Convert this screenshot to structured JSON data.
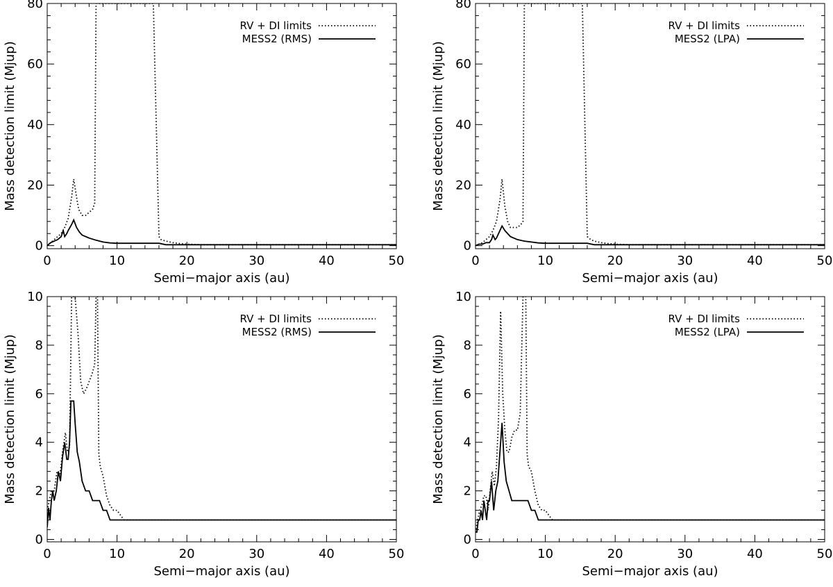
{
  "chart_data": [
    {
      "type": "line",
      "panel": "top-left",
      "xlabel": "Semi−major axis (au)",
      "ylabel": "Mass detection limit (Mjup)",
      "xlim": [
        0,
        50
      ],
      "ylim": [
        -1,
        80
      ],
      "xticks": [
        0,
        10,
        20,
        30,
        40,
        50
      ],
      "yticks": [
        0,
        20,
        40,
        60,
        80
      ],
      "legend_position": "top-right",
      "series": [
        {
          "name": "RV + DI limits",
          "style": "dotted",
          "x": [
            0,
            0.5,
            1,
            1.5,
            2,
            2.5,
            3,
            3.5,
            3.8,
            4.2,
            4.5,
            5,
            5.5,
            6,
            6.5,
            6.8,
            7,
            7.2,
            10,
            15,
            15.2,
            16,
            16.3,
            17,
            18,
            19,
            20,
            22,
            50
          ],
          "y": [
            0,
            1,
            2,
            3,
            4,
            6,
            9,
            16,
            22,
            16,
            12,
            10,
            10,
            11,
            12,
            14,
            80,
            80,
            80,
            80,
            80,
            3,
            2,
            1.5,
            1,
            0.7,
            0.5,
            0.3,
            0.3
          ]
        },
        {
          "name": "MESS2 (RMS)",
          "style": "solid",
          "x": [
            0,
            0.5,
            1,
            1.5,
            2,
            2.3,
            2.5,
            2.8,
            3,
            3.5,
            3.8,
            4.2,
            4.6,
            5,
            6,
            7,
            8,
            9,
            10,
            15,
            16,
            17,
            50
          ],
          "y": [
            0,
            1,
            1.5,
            2,
            3,
            5,
            3,
            4,
            5,
            7,
            8.5,
            6,
            4.5,
            3.5,
            2.5,
            1.8,
            1.2,
            0.9,
            0.8,
            0.8,
            0.8,
            0.3,
            0.3
          ]
        }
      ]
    },
    {
      "type": "line",
      "panel": "top-right",
      "xlabel": "Semi−major axis (au)",
      "ylabel": "Mass detection limit (Mjup)",
      "xlim": [
        0,
        50
      ],
      "ylim": [
        -1,
        80
      ],
      "xticks": [
        0,
        10,
        20,
        30,
        40,
        50
      ],
      "yticks": [
        0,
        20,
        40,
        60,
        80
      ],
      "legend_position": "top-right",
      "series": [
        {
          "name": "RV + DI limits",
          "style": "dotted",
          "x": [
            0,
            0.5,
            1,
            1.5,
            2,
            2.5,
            3,
            3.5,
            3.8,
            4.2,
            4.6,
            5,
            5.5,
            6,
            6.5,
            6.8,
            7,
            7.2,
            10,
            15,
            15.3,
            16,
            16.5,
            17,
            18,
            19,
            20,
            22,
            50
          ],
          "y": [
            0,
            0.5,
            1,
            2,
            3,
            5,
            8,
            15,
            22,
            13,
            8,
            6,
            6,
            6,
            7,
            8,
            80,
            80,
            80,
            80,
            80,
            3,
            2,
            1.5,
            1,
            0.7,
            0.5,
            0.3,
            0.3
          ]
        },
        {
          "name": "MESS2 (LPA)",
          "style": "solid",
          "x": [
            0,
            0.5,
            1,
            1.5,
            2,
            2.3,
            2.5,
            2.8,
            3,
            3.5,
            3.8,
            4.2,
            4.6,
            5,
            6,
            7,
            8,
            9,
            10,
            15,
            16,
            17,
            50
          ],
          "y": [
            0,
            0.5,
            0.5,
            1,
            1,
            2,
            3.5,
            2,
            2.5,
            5,
            6.5,
            5,
            4,
            3,
            2,
            1.5,
            1.2,
            0.9,
            0.8,
            0.8,
            0.8,
            0.3,
            0.3
          ]
        }
      ]
    },
    {
      "type": "line",
      "panel": "bottom-left",
      "xlabel": "Semi−major axis (au)",
      "ylabel": "Mass detection limit (Mjup)",
      "xlim": [
        0,
        50
      ],
      "ylim": [
        -0.1,
        10
      ],
      "xticks": [
        0,
        10,
        20,
        30,
        40,
        50
      ],
      "yticks": [
        0,
        2,
        4,
        6,
        8,
        10
      ],
      "legend_position": "top-right",
      "series": [
        {
          "name": "RV + DI limits",
          "style": "dotted",
          "x": [
            0,
            0.3,
            0.6,
            1,
            1.4,
            1.8,
            2.2,
            2.6,
            2.9,
            3.2,
            3.5,
            3.8,
            4.0,
            4.4,
            4.8,
            5.2,
            5.6,
            6,
            6.4,
            6.8,
            7.0,
            7.2,
            7.4,
            7.6,
            8,
            8.5,
            9,
            9.5,
            10,
            10.5,
            11,
            50
          ],
          "y": [
            1.2,
            1.6,
            2.0,
            2.0,
            2.8,
            2.6,
            3.6,
            4.4,
            3.6,
            3.8,
            10.3,
            10.3,
            10.3,
            8.5,
            6.5,
            6.0,
            6.2,
            6.5,
            6.8,
            7.2,
            10.3,
            10.3,
            3.5,
            3.0,
            2.6,
            1.8,
            1.4,
            1.2,
            1.2,
            1.0,
            0.8,
            0.8
          ]
        },
        {
          "name": "MESS2 (RMS)",
          "style": "solid",
          "x": [
            0,
            0.2,
            0.4,
            0.6,
            0.8,
            1.0,
            1.3,
            1.6,
            1.9,
            2.2,
            2.5,
            2.8,
            3.0,
            3.2,
            3.4,
            3.6,
            3.8,
            4.0,
            4.3,
            4.6,
            5.0,
            5.5,
            6.0,
            6.5,
            7.0,
            7.5,
            8,
            8.5,
            9,
            10,
            50
          ],
          "y": [
            0.5,
            1.3,
            0.8,
            1.6,
            2.0,
            1.6,
            2.0,
            2.8,
            2.4,
            3.4,
            4.0,
            3.3,
            3.3,
            4.0,
            5.7,
            5.7,
            5.7,
            4.8,
            3.6,
            3.2,
            2.4,
            2.0,
            2.0,
            1.6,
            1.6,
            1.6,
            1.2,
            1.2,
            0.8,
            0.8,
            0.8
          ]
        }
      ]
    },
    {
      "type": "line",
      "panel": "bottom-right",
      "xlabel": "Semi−major axis (au)",
      "ylabel": "Mass detection limit (Mjup)",
      "xlim": [
        0,
        50
      ],
      "ylim": [
        -0.1,
        10
      ],
      "xticks": [
        0,
        10,
        20,
        30,
        40,
        50
      ],
      "yticks": [
        0,
        2,
        4,
        6,
        8,
        10
      ],
      "legend_position": "top-right",
      "series": [
        {
          "name": "RV + DI limits",
          "style": "dotted",
          "x": [
            0,
            0.3,
            0.6,
            0.9,
            1.2,
            1.5,
            1.8,
            2.1,
            2.4,
            2.7,
            3.0,
            3.3,
            3.6,
            3.9,
            4.2,
            4.5,
            4.8,
            5.2,
            5.6,
            6.0,
            6.4,
            6.8,
            7.0,
            7.2,
            7.4,
            7.6,
            8,
            8.5,
            9,
            9.5,
            10,
            10.5,
            11,
            50
          ],
          "y": [
            0.3,
            0.8,
            1.2,
            1.4,
            1.8,
            1.8,
            1.2,
            2.0,
            2.8,
            2.2,
            3.0,
            5.0,
            9.4,
            6.0,
            4.5,
            3.6,
            3.6,
            4.2,
            4.5,
            4.5,
            5.2,
            10.3,
            10.3,
            10.3,
            3.5,
            3.0,
            2.8,
            2.0,
            1.4,
            1.2,
            1.2,
            1.0,
            0.8,
            0.8
          ]
        },
        {
          "name": "MESS2 (LPA)",
          "style": "solid",
          "x": [
            0,
            0.2,
            0.4,
            0.6,
            0.8,
            1.0,
            1.2,
            1.4,
            1.6,
            1.8,
            2.0,
            2.3,
            2.6,
            2.9,
            3.2,
            3.5,
            3.8,
            4.1,
            4.4,
            4.8,
            5.2,
            5.6,
            6.0,
            6.5,
            7.0,
            7.5,
            8,
            8.5,
            9,
            10,
            50
          ],
          "y": [
            0.3,
            0.3,
            0.8,
            0.8,
            1.2,
            0.8,
            1.6,
            1.2,
            0.8,
            1.6,
            1.6,
            2.4,
            1.2,
            2.0,
            2.4,
            3.6,
            4.8,
            3.2,
            2.4,
            2.0,
            1.6,
            1.6,
            1.6,
            1.6,
            1.6,
            1.6,
            1.2,
            1.2,
            0.8,
            0.8,
            0.8
          ]
        }
      ]
    }
  ]
}
